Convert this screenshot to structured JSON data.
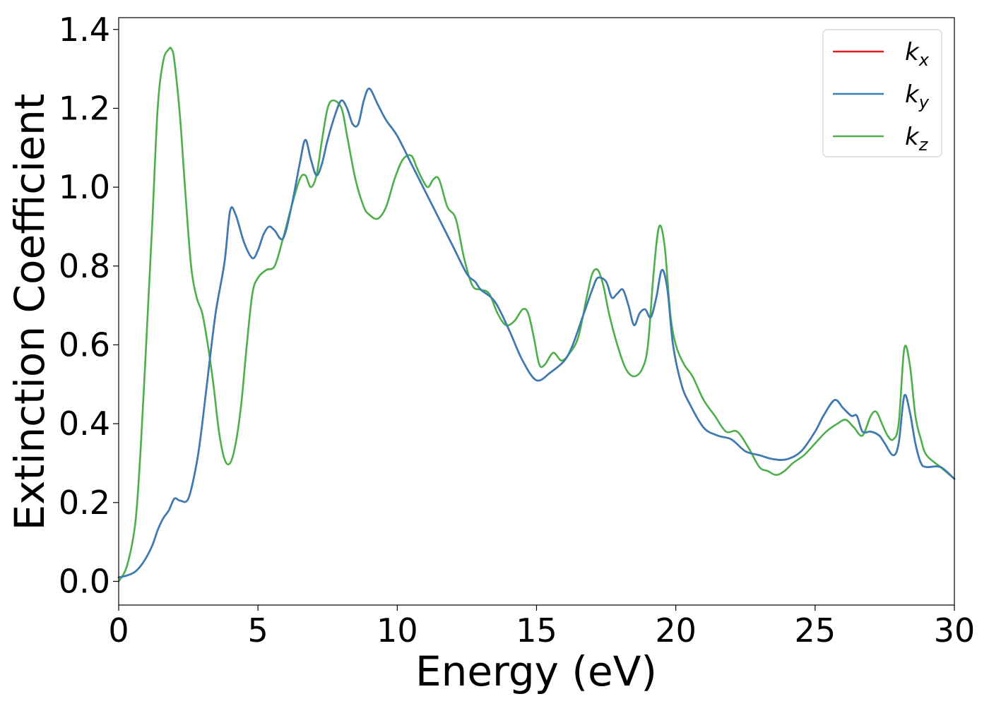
{
  "chart_data": {
    "type": "line",
    "xlabel": "Energy (eV)",
    "ylabel": "Extinction Coefficient",
    "xlim": [
      0,
      30
    ],
    "ylim": [
      -0.06,
      1.43
    ],
    "xticks": [
      "0",
      "5",
      "10",
      "15",
      "20",
      "25",
      "30"
    ],
    "yticks": [
      "0.0",
      "0.2",
      "0.4",
      "0.6",
      "0.8",
      "1.0",
      "1.2",
      "1.4"
    ],
    "grid": false,
    "legend_position": "top-right",
    "series": [
      {
        "name": "kx",
        "label_main": "k",
        "label_sub": "x",
        "color": "#e41a1c",
        "x": [
          0,
          0.3,
          0.6,
          0.9,
          1.2,
          1.4,
          1.6,
          1.8,
          2.0,
          2.2,
          2.5,
          2.8,
          3.0,
          3.3,
          3.5,
          3.8,
          4.0,
          4.2,
          4.5,
          4.8,
          5.0,
          5.2,
          5.4,
          5.6,
          5.9,
          6.2,
          6.5,
          6.7,
          6.9,
          7.1,
          7.3,
          7.5,
          7.8,
          8.0,
          8.2,
          8.4,
          8.6,
          8.8,
          9.0,
          9.3,
          9.6,
          10.0,
          10.5,
          11.0,
          11.5,
          12.0,
          12.5,
          12.8,
          13.0,
          13.5,
          14.0,
          14.5,
          15.0,
          15.5,
          16.0,
          16.3,
          16.7,
          17.0,
          17.2,
          17.5,
          17.7,
          17.9,
          18.1,
          18.3,
          18.5,
          18.7,
          18.9,
          19.1,
          19.3,
          19.5,
          19.7,
          19.9,
          20.2,
          20.5,
          21.0,
          21.5,
          22.0,
          22.5,
          23.0,
          23.5,
          24.0,
          24.5,
          25.0,
          25.3,
          25.7,
          26.0,
          26.3,
          26.5,
          26.7,
          27.0,
          27.3,
          27.5,
          27.8,
          28.0,
          28.2,
          28.4,
          28.6,
          28.8,
          29.0,
          29.5,
          30.0
        ],
        "values": [
          0.01,
          0.015,
          0.025,
          0.05,
          0.09,
          0.13,
          0.16,
          0.18,
          0.21,
          0.205,
          0.21,
          0.3,
          0.4,
          0.58,
          0.69,
          0.81,
          0.94,
          0.93,
          0.86,
          0.82,
          0.84,
          0.88,
          0.9,
          0.89,
          0.87,
          0.95,
          1.06,
          1.12,
          1.07,
          1.03,
          1.06,
          1.12,
          1.19,
          1.22,
          1.2,
          1.16,
          1.16,
          1.22,
          1.25,
          1.21,
          1.17,
          1.13,
          1.06,
          0.99,
          0.92,
          0.85,
          0.78,
          0.76,
          0.74,
          0.71,
          0.64,
          0.56,
          0.51,
          0.53,
          0.56,
          0.6,
          0.68,
          0.74,
          0.77,
          0.76,
          0.72,
          0.73,
          0.74,
          0.7,
          0.65,
          0.68,
          0.69,
          0.67,
          0.72,
          0.79,
          0.74,
          0.6,
          0.5,
          0.45,
          0.39,
          0.37,
          0.36,
          0.33,
          0.32,
          0.31,
          0.31,
          0.33,
          0.38,
          0.42,
          0.46,
          0.44,
          0.42,
          0.42,
          0.38,
          0.38,
          0.37,
          0.35,
          0.32,
          0.35,
          0.47,
          0.43,
          0.35,
          0.3,
          0.29,
          0.29,
          0.26
        ]
      },
      {
        "name": "ky",
        "label_main": "k",
        "label_sub": "y",
        "color": "#377eb8",
        "x": [
          0,
          0.3,
          0.6,
          0.9,
          1.2,
          1.4,
          1.6,
          1.8,
          2.0,
          2.2,
          2.5,
          2.8,
          3.0,
          3.3,
          3.5,
          3.8,
          4.0,
          4.2,
          4.5,
          4.8,
          5.0,
          5.2,
          5.4,
          5.6,
          5.9,
          6.2,
          6.5,
          6.7,
          6.9,
          7.1,
          7.3,
          7.5,
          7.8,
          8.0,
          8.2,
          8.4,
          8.6,
          8.8,
          9.0,
          9.3,
          9.6,
          10.0,
          10.5,
          11.0,
          11.5,
          12.0,
          12.5,
          12.8,
          13.0,
          13.5,
          14.0,
          14.5,
          15.0,
          15.5,
          16.0,
          16.3,
          16.7,
          17.0,
          17.2,
          17.5,
          17.7,
          17.9,
          18.1,
          18.3,
          18.5,
          18.7,
          18.9,
          19.1,
          19.3,
          19.5,
          19.7,
          19.9,
          20.2,
          20.5,
          21.0,
          21.5,
          22.0,
          22.5,
          23.0,
          23.5,
          24.0,
          24.5,
          25.0,
          25.3,
          25.7,
          26.0,
          26.3,
          26.5,
          26.7,
          27.0,
          27.3,
          27.5,
          27.8,
          28.0,
          28.2,
          28.4,
          28.6,
          28.8,
          29.0,
          29.5,
          30.0
        ],
        "values": [
          0.01,
          0.015,
          0.025,
          0.05,
          0.09,
          0.13,
          0.16,
          0.18,
          0.21,
          0.205,
          0.21,
          0.3,
          0.4,
          0.58,
          0.69,
          0.81,
          0.94,
          0.93,
          0.86,
          0.82,
          0.84,
          0.88,
          0.9,
          0.89,
          0.87,
          0.95,
          1.06,
          1.12,
          1.07,
          1.03,
          1.06,
          1.12,
          1.19,
          1.22,
          1.2,
          1.16,
          1.16,
          1.22,
          1.25,
          1.21,
          1.17,
          1.13,
          1.06,
          0.99,
          0.92,
          0.85,
          0.78,
          0.76,
          0.74,
          0.71,
          0.64,
          0.56,
          0.51,
          0.53,
          0.56,
          0.6,
          0.68,
          0.74,
          0.77,
          0.76,
          0.72,
          0.73,
          0.74,
          0.7,
          0.65,
          0.68,
          0.69,
          0.67,
          0.72,
          0.79,
          0.74,
          0.6,
          0.5,
          0.45,
          0.39,
          0.37,
          0.36,
          0.33,
          0.32,
          0.31,
          0.31,
          0.33,
          0.38,
          0.42,
          0.46,
          0.44,
          0.42,
          0.42,
          0.38,
          0.38,
          0.37,
          0.35,
          0.32,
          0.35,
          0.47,
          0.43,
          0.35,
          0.3,
          0.29,
          0.29,
          0.26
        ]
      },
      {
        "name": "kz",
        "label_main": "k",
        "label_sub": "z",
        "color": "#4daf4a",
        "x": [
          0,
          0.3,
          0.6,
          0.8,
          1.0,
          1.2,
          1.4,
          1.6,
          1.8,
          1.9,
          2.0,
          2.2,
          2.4,
          2.6,
          2.8,
          3.0,
          3.2,
          3.4,
          3.6,
          3.8,
          4.0,
          4.2,
          4.4,
          4.6,
          4.8,
          5.0,
          5.3,
          5.6,
          5.9,
          6.2,
          6.5,
          6.7,
          6.9,
          7.1,
          7.3,
          7.5,
          7.7,
          8.0,
          8.2,
          8.5,
          8.8,
          9.0,
          9.3,
          9.6,
          9.9,
          10.2,
          10.5,
          10.7,
          10.9,
          11.1,
          11.3,
          11.5,
          11.8,
          12.1,
          12.4,
          12.7,
          13.0,
          13.3,
          13.6,
          13.9,
          14.2,
          14.5,
          14.7,
          14.9,
          15.1,
          15.3,
          15.6,
          15.9,
          16.2,
          16.5,
          16.8,
          17.0,
          17.2,
          17.4,
          17.6,
          17.9,
          18.2,
          18.5,
          18.8,
          19.0,
          19.2,
          19.4,
          19.6,
          19.8,
          20.0,
          20.3,
          20.6,
          21.0,
          21.4,
          21.8,
          22.2,
          22.6,
          23.0,
          23.3,
          23.6,
          23.9,
          24.2,
          24.6,
          25.0,
          25.4,
          25.8,
          26.1,
          26.4,
          26.7,
          27.0,
          27.2,
          27.4,
          27.6,
          27.8,
          28.0,
          28.2,
          28.4,
          28.6,
          28.8,
          29.0,
          29.5,
          30.0
        ],
        "values": [
          0.0,
          0.04,
          0.15,
          0.35,
          0.62,
          0.9,
          1.2,
          1.32,
          1.35,
          1.35,
          1.32,
          1.18,
          0.98,
          0.8,
          0.72,
          0.68,
          0.6,
          0.5,
          0.38,
          0.31,
          0.3,
          0.35,
          0.45,
          0.6,
          0.73,
          0.77,
          0.79,
          0.8,
          0.87,
          0.95,
          1.02,
          1.03,
          1.0,
          1.03,
          1.12,
          1.2,
          1.22,
          1.2,
          1.13,
          1.02,
          0.95,
          0.93,
          0.92,
          0.95,
          1.02,
          1.07,
          1.08,
          1.05,
          1.02,
          1.0,
          1.02,
          1.02,
          0.95,
          0.92,
          0.82,
          0.75,
          0.74,
          0.73,
          0.68,
          0.65,
          0.66,
          0.69,
          0.68,
          0.62,
          0.55,
          0.55,
          0.58,
          0.56,
          0.58,
          0.62,
          0.72,
          0.78,
          0.79,
          0.75,
          0.68,
          0.6,
          0.54,
          0.52,
          0.54,
          0.6,
          0.78,
          0.9,
          0.85,
          0.68,
          0.6,
          0.55,
          0.52,
          0.46,
          0.42,
          0.38,
          0.38,
          0.34,
          0.29,
          0.28,
          0.27,
          0.28,
          0.3,
          0.32,
          0.35,
          0.38,
          0.4,
          0.41,
          0.39,
          0.37,
          0.42,
          0.43,
          0.4,
          0.37,
          0.36,
          0.4,
          0.59,
          0.55,
          0.42,
          0.36,
          0.32,
          0.29,
          0.26
        ]
      }
    ]
  }
}
